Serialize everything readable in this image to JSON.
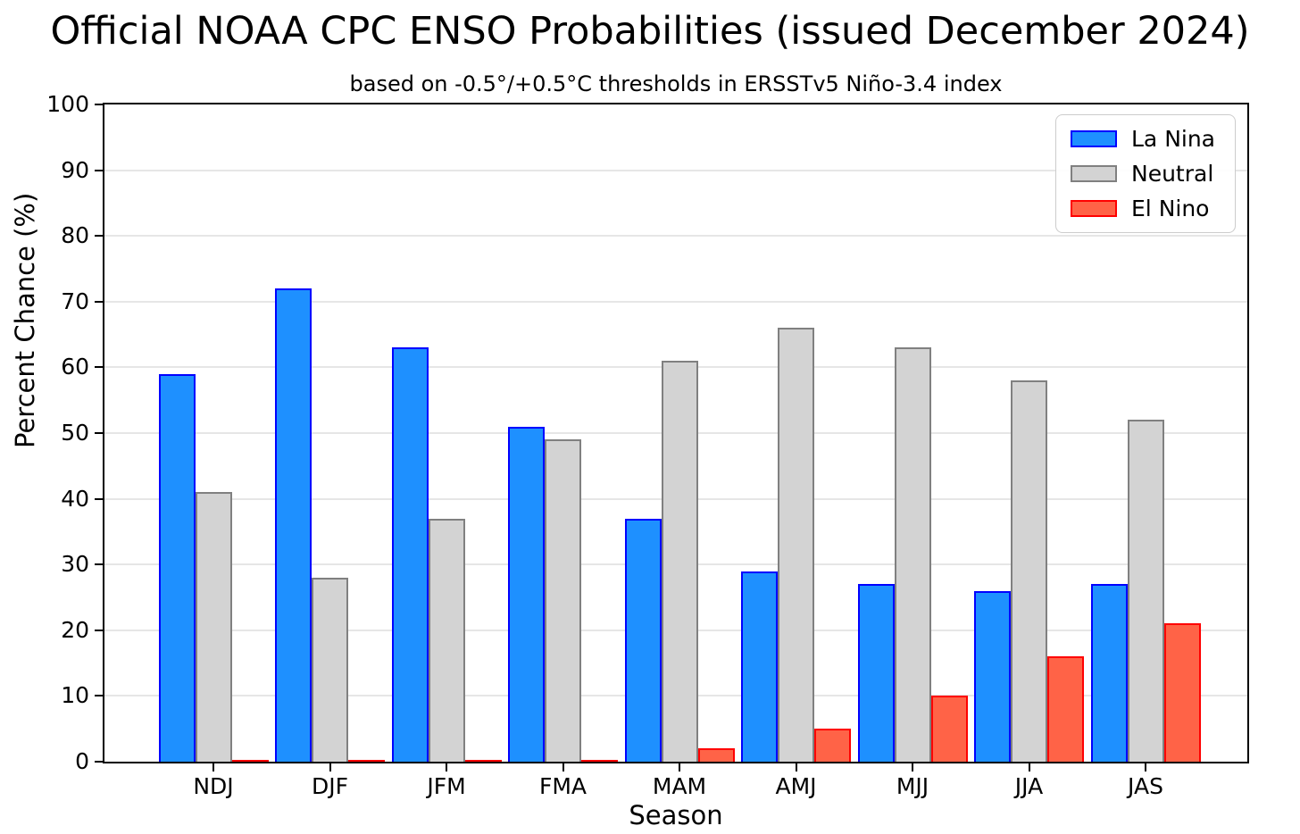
{
  "chart_data": {
    "type": "bar",
    "title": "Official NOAA CPC ENSO Probabilities (issued December 2024)",
    "subtitle": "based on -0.5°/+0.5°C thresholds in ERSSTv5 Niño-3.4 index",
    "xlabel": "Season",
    "ylabel": "Percent Chance (%)",
    "ylim": [
      0,
      100
    ],
    "ytick_step": 10,
    "yticks": [
      0,
      10,
      20,
      30,
      40,
      50,
      60,
      70,
      80,
      90,
      100
    ],
    "grid": "horizontal",
    "legend_position": "upper right",
    "categories": [
      "NDJ",
      "DJF",
      "JFM",
      "FMA",
      "MAM",
      "AMJ",
      "MJJ",
      "JJA",
      "JAS"
    ],
    "series": [
      {
        "name": "La Nina",
        "fill": "#1E90FF",
        "edge": "#0000FF",
        "values": [
          59,
          72,
          63,
          51,
          37,
          29,
          27,
          26,
          27
        ]
      },
      {
        "name": "Neutral",
        "fill": "#D3D3D3",
        "edge": "#808080",
        "values": [
          41,
          28,
          37,
          49,
          61,
          66,
          63,
          58,
          52
        ]
      },
      {
        "name": "El Nino",
        "fill": "#FF6347",
        "edge": "#FF0000",
        "values": [
          0,
          0,
          0,
          0,
          2,
          5,
          10,
          16,
          21
        ]
      }
    ],
    "colors": {
      "la_nina_fill": "#1E90FF",
      "la_nina_edge": "#0000FF",
      "neutral_fill": "#D3D3D3",
      "neutral_edge": "#808080",
      "el_nino_fill": "#FF6347",
      "el_nino_edge": "#FF0000",
      "gridline": "#e6e6e6",
      "axis": "#000000"
    }
  }
}
